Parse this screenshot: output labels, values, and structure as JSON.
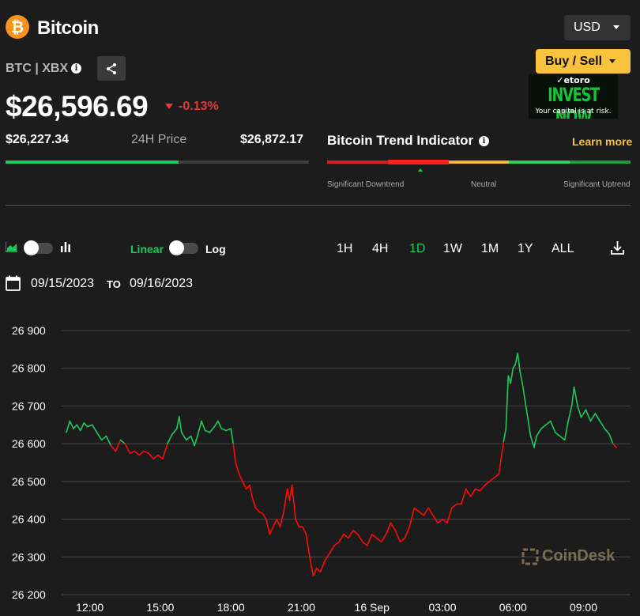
{
  "header": {
    "coin_icon_glyph": "₿",
    "coin_name": "Bitcoin",
    "currency": "USD",
    "ticker": "BTC | XBX",
    "buy_sell_label": "Buy / Sell"
  },
  "ad": {
    "brand": "✓etoro",
    "headline": "INVEST NOW",
    "disclaimer": "Your capital is at risk."
  },
  "price": {
    "current": "$26,596.69",
    "change": "-0.13%",
    "change_color": "#e03a3a",
    "low_24h": "$26,227.34",
    "range_label": "24H Price",
    "high_24h": "$26,872.17",
    "range_position": 0.57
  },
  "trend": {
    "title": "Bitcoin Trend Indicator",
    "learn_more": "Learn more",
    "labels": [
      "Significant Downtrend",
      "Neutral",
      "Significant Uptrend"
    ],
    "colors": [
      "#d6201e",
      "#ff1f1f",
      "#f9b233",
      "#2fcf56",
      "#1e9e37"
    ],
    "active_segment": 1
  },
  "controls": {
    "scale_linear": "Linear",
    "scale_log": "Log",
    "timeframes": [
      "1H",
      "4H",
      "1D",
      "1W",
      "1M",
      "1Y",
      "ALL"
    ],
    "active_timeframe": "1D",
    "date_from": "09/15/2023",
    "date_to_label": "TO",
    "date_to": "09/16/2023"
  },
  "chart_data": {
    "type": "line",
    "ylim": [
      26200,
      26900
    ],
    "yticks": [
      "26 200",
      "26 300",
      "26 400",
      "26 500",
      "26 600",
      "26 700",
      "26 800",
      "26 900"
    ],
    "xlim": [
      10.8,
      35
    ],
    "xticks": [
      {
        "label": "12:00",
        "x": 12
      },
      {
        "label": "15:00",
        "x": 15
      },
      {
        "label": "18:00",
        "x": 18
      },
      {
        "label": "21:00",
        "x": 21
      },
      {
        "label": "16 Sep",
        "x": 24
      },
      {
        "label": "03:00",
        "x": 27
      },
      {
        "label": "06:00",
        "x": 30
      },
      {
        "label": "09:00",
        "x": 33
      }
    ],
    "baseline": 26596.69,
    "up_color": "#1ec95a",
    "down_color": "#ff0a0a",
    "grid": true,
    "watermark": "CoinDesk",
    "points": [
      [
        11.0,
        26630
      ],
      [
        11.15,
        26660
      ],
      [
        11.3,
        26640
      ],
      [
        11.45,
        26650
      ],
      [
        11.6,
        26635
      ],
      [
        11.75,
        26655
      ],
      [
        11.9,
        26645
      ],
      [
        12.1,
        26650
      ],
      [
        12.3,
        26630
      ],
      [
        12.5,
        26610
      ],
      [
        12.7,
        26620
      ],
      [
        12.9,
        26595
      ],
      [
        13.1,
        26580
      ],
      [
        13.3,
        26610
      ],
      [
        13.5,
        26600
      ],
      [
        13.7,
        26575
      ],
      [
        13.9,
        26580
      ],
      [
        14.1,
        26570
      ],
      [
        14.3,
        26580
      ],
      [
        14.5,
        26575
      ],
      [
        14.7,
        26560
      ],
      [
        14.9,
        26570
      ],
      [
        15.1,
        26560
      ],
      [
        15.3,
        26600
      ],
      [
        15.5,
        26625
      ],
      [
        15.7,
        26640
      ],
      [
        15.8,
        26672
      ],
      [
        15.9,
        26630
      ],
      [
        16.1,
        26610
      ],
      [
        16.3,
        26620
      ],
      [
        16.45,
        26595
      ],
      [
        16.6,
        26625
      ],
      [
        16.75,
        26660
      ],
      [
        16.9,
        26635
      ],
      [
        17.1,
        26630
      ],
      [
        17.3,
        26645
      ],
      [
        17.45,
        26660
      ],
      [
        17.6,
        26640
      ],
      [
        17.8,
        26635
      ],
      [
        18.0,
        26640
      ],
      [
        18.1,
        26600
      ],
      [
        18.2,
        26550
      ],
      [
        18.35,
        26520
      ],
      [
        18.5,
        26500
      ],
      [
        18.65,
        26480
      ],
      [
        18.8,
        26490
      ],
      [
        18.9,
        26460
      ],
      [
        19.05,
        26430
      ],
      [
        19.2,
        26420
      ],
      [
        19.35,
        26415
      ],
      [
        19.5,
        26400
      ],
      [
        19.65,
        26360
      ],
      [
        19.8,
        26380
      ],
      [
        19.95,
        26400
      ],
      [
        20.1,
        26380
      ],
      [
        20.25,
        26420
      ],
      [
        20.4,
        26480
      ],
      [
        20.5,
        26450
      ],
      [
        20.6,
        26490
      ],
      [
        20.75,
        26400
      ],
      [
        20.9,
        26380
      ],
      [
        21.05,
        26380
      ],
      [
        21.2,
        26360
      ],
      [
        21.35,
        26300
      ],
      [
        21.5,
        26250
      ],
      [
        21.65,
        26270
      ],
      [
        21.8,
        26260
      ],
      [
        22.0,
        26290
      ],
      [
        22.2,
        26310
      ],
      [
        22.4,
        26330
      ],
      [
        22.6,
        26340
      ],
      [
        22.8,
        26360
      ],
      [
        23.0,
        26350
      ],
      [
        23.2,
        26370
      ],
      [
        23.4,
        26360
      ],
      [
        23.6,
        26340
      ],
      [
        23.8,
        26330
      ],
      [
        24.0,
        26360
      ],
      [
        24.2,
        26350
      ],
      [
        24.4,
        26340
      ],
      [
        24.6,
        26360
      ],
      [
        24.8,
        26390
      ],
      [
        25.0,
        26370
      ],
      [
        25.2,
        26340
      ],
      [
        25.4,
        26350
      ],
      [
        25.6,
        26380
      ],
      [
        25.8,
        26430
      ],
      [
        26.0,
        26420
      ],
      [
        26.2,
        26410
      ],
      [
        26.4,
        26430
      ],
      [
        26.6,
        26410
      ],
      [
        26.8,
        26390
      ],
      [
        27.0,
        26400
      ],
      [
        27.2,
        26390
      ],
      [
        27.4,
        26430
      ],
      [
        27.6,
        26440
      ],
      [
        27.8,
        26440
      ],
      [
        28.0,
        26480
      ],
      [
        28.2,
        26460
      ],
      [
        28.4,
        26480
      ],
      [
        28.6,
        26475
      ],
      [
        28.8,
        26490
      ],
      [
        29.0,
        26500
      ],
      [
        29.2,
        26510
      ],
      [
        29.4,
        26520
      ],
      [
        29.6,
        26605
      ],
      [
        29.7,
        26640
      ],
      [
        29.8,
        26780
      ],
      [
        29.9,
        26760
      ],
      [
        30.0,
        26800
      ],
      [
        30.1,
        26810
      ],
      [
        30.2,
        26840
      ],
      [
        30.3,
        26790
      ],
      [
        30.4,
        26760
      ],
      [
        30.5,
        26720
      ],
      [
        30.6,
        26680
      ],
      [
        30.75,
        26620
      ],
      [
        30.9,
        26590
      ],
      [
        31.0,
        26620
      ],
      [
        31.2,
        26640
      ],
      [
        31.4,
        26650
      ],
      [
        31.6,
        26660
      ],
      [
        31.8,
        26630
      ],
      [
        32.0,
        26620
      ],
      [
        32.2,
        26610
      ],
      [
        32.35,
        26660
      ],
      [
        32.5,
        26700
      ],
      [
        32.6,
        26750
      ],
      [
        32.75,
        26700
      ],
      [
        32.9,
        26670
      ],
      [
        33.1,
        26690
      ],
      [
        33.3,
        26660
      ],
      [
        33.5,
        26680
      ],
      [
        33.7,
        26660
      ],
      [
        33.9,
        26640
      ],
      [
        34.1,
        26625
      ],
      [
        34.25,
        26600
      ],
      [
        34.4,
        26590
      ]
    ]
  }
}
